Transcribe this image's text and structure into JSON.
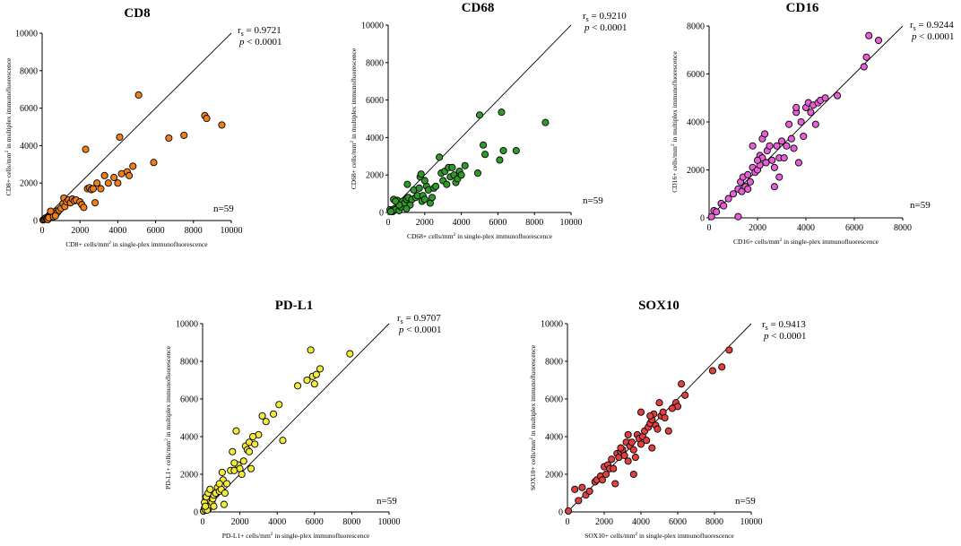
{
  "figure": {
    "n_label": "n=59"
  },
  "chart_data": [
    {
      "type": "scatter",
      "title": "CD8",
      "xlabel_pre": "CD8+ cells/mm",
      "xlabel_sup": "2",
      "xlabel_post": " in single-plex immunofluorescence",
      "ylabel_pre": "CD8+ cells/mm",
      "ylabel_sup": "2",
      "ylabel_post": " in multiplex immunofluorescence",
      "xlim": [
        0,
        10000
      ],
      "ylim": [
        0,
        10000
      ],
      "xticks": [
        0,
        2000,
        4000,
        6000,
        8000,
        10000
      ],
      "yticks": [
        0,
        2000,
        4000,
        6000,
        8000,
        10000
      ],
      "rs_label": "r",
      "rs_sub": "s",
      "rs_value": " = 0.9721",
      "p_label": "p",
      "p_value": " < 0.0001",
      "n": "n=59",
      "color": "#f07f1a",
      "identity_line": [
        [
          0,
          0
        ],
        [
          10000,
          10000
        ]
      ],
      "points": [
        [
          50,
          30
        ],
        [
          100,
          60
        ],
        [
          150,
          100
        ],
        [
          200,
          150
        ],
        [
          250,
          120
        ],
        [
          300,
          200
        ],
        [
          350,
          250
        ],
        [
          400,
          300
        ],
        [
          450,
          280
        ],
        [
          500,
          350
        ],
        [
          550,
          400
        ],
        [
          600,
          330
        ],
        [
          650,
          450
        ],
        [
          700,
          380
        ],
        [
          750,
          500
        ],
        [
          800,
          420
        ],
        [
          900,
          550
        ],
        [
          1000,
          650
        ],
        [
          1100,
          900
        ],
        [
          1150,
          1200
        ],
        [
          1200,
          750
        ],
        [
          1300,
          1000
        ],
        [
          1400,
          1100
        ],
        [
          1500,
          950
        ],
        [
          1600,
          1150
        ],
        [
          1700,
          1050
        ],
        [
          1800,
          1100
        ],
        [
          2000,
          1000
        ],
        [
          2100,
          850
        ],
        [
          2200,
          700
        ],
        [
          2300,
          3800
        ],
        [
          2400,
          1700
        ],
        [
          2500,
          1750
        ],
        [
          2600,
          1650
        ],
        [
          2700,
          1700
        ],
        [
          2800,
          950
        ],
        [
          2900,
          2000
        ],
        [
          3100,
          1700
        ],
        [
          3300,
          2400
        ],
        [
          3500,
          2000
        ],
        [
          3800,
          2300
        ],
        [
          4000,
          2000
        ],
        [
          4100,
          4450
        ],
        [
          4200,
          2500
        ],
        [
          4500,
          2600
        ],
        [
          4600,
          2400
        ],
        [
          4800,
          2900
        ],
        [
          5100,
          6700
        ],
        [
          5900,
          3100
        ],
        [
          6700,
          4400
        ],
        [
          7500,
          4550
        ],
        [
          8600,
          5600
        ],
        [
          8700,
          5450
        ],
        [
          9500,
          5100
        ],
        [
          300,
          50
        ],
        [
          350,
          150
        ],
        [
          450,
          500
        ],
        [
          600,
          200
        ],
        [
          700,
          250
        ]
      ]
    },
    {
      "type": "scatter",
      "title": "CD68",
      "xlabel_pre": "CD68+ cells/mm",
      "xlabel_sup": "2",
      "xlabel_post": " in single-plex immunofluorescence",
      "ylabel_pre": "CD68+ cells/mm",
      "ylabel_sup": "2",
      "ylabel_post": " in multiplex immunofluorescence",
      "xlim": [
        0,
        10000
      ],
      "ylim": [
        0,
        10000
      ],
      "xticks": [
        0,
        2000,
        4000,
        6000,
        8000,
        10000
      ],
      "yticks": [
        0,
        2000,
        4000,
        6000,
        8000,
        10000
      ],
      "rs_label": "r",
      "rs_sub": "s",
      "rs_value": " = 0.9210",
      "p_label": "p",
      "p_value": " < 0.0001",
      "n": "n=59",
      "color": "#2f9a27",
      "identity_line": [
        [
          0,
          0
        ],
        [
          10000,
          10000
        ]
      ],
      "points": [
        [
          100,
          150
        ],
        [
          200,
          100
        ],
        [
          250,
          50
        ],
        [
          300,
          700
        ],
        [
          350,
          200
        ],
        [
          400,
          150
        ],
        [
          500,
          650
        ],
        [
          600,
          100
        ],
        [
          700,
          300
        ],
        [
          800,
          600
        ],
        [
          900,
          500
        ],
        [
          1000,
          700
        ],
        [
          1050,
          1500
        ],
        [
          1100,
          800
        ],
        [
          1200,
          400
        ],
        [
          1300,
          700
        ],
        [
          1400,
          1200
        ],
        [
          1500,
          800
        ],
        [
          1600,
          900
        ],
        [
          1700,
          1300
        ],
        [
          1750,
          1900
        ],
        [
          1800,
          2050
        ],
        [
          1850,
          600
        ],
        [
          1900,
          900
        ],
        [
          2000,
          700
        ],
        [
          2100,
          1400
        ],
        [
          2200,
          1200
        ],
        [
          2300,
          500
        ],
        [
          2400,
          800
        ],
        [
          2500,
          1300
        ],
        [
          2600,
          1400
        ],
        [
          2800,
          2950
        ],
        [
          2900,
          2100
        ],
        [
          3000,
          1700
        ],
        [
          3100,
          2200
        ],
        [
          3200,
          1500
        ],
        [
          3300,
          2400
        ],
        [
          3400,
          1900
        ],
        [
          3500,
          2400
        ],
        [
          3600,
          2000
        ],
        [
          3700,
          1600
        ],
        [
          3800,
          1800
        ],
        [
          3900,
          2200
        ],
        [
          4000,
          2000
        ],
        [
          4200,
          2500
        ],
        [
          4900,
          2100
        ],
        [
          5000,
          5200
        ],
        [
          5200,
          3600
        ],
        [
          5300,
          3100
        ],
        [
          6100,
          2800
        ],
        [
          6200,
          5350
        ],
        [
          6300,
          3300
        ],
        [
          7000,
          3300
        ],
        [
          8600,
          4800
        ],
        [
          150,
          50
        ],
        [
          600,
          400
        ],
        [
          1000,
          200
        ],
        [
          2000,
          1700
        ],
        [
          400,
          600
        ]
      ]
    },
    {
      "type": "scatter",
      "title": "CD16",
      "xlabel_pre": "CD16+ cells/mm",
      "xlabel_sup": "2",
      "xlabel_post": " in single-plex immunofluorescence",
      "ylabel_pre": "CD16+ cells/mm",
      "ylabel_sup": "2",
      "ylabel_post": " in multiplex immunofluorescence",
      "xlim": [
        0,
        8000
      ],
      "ylim": [
        0,
        8000
      ],
      "xticks": [
        0,
        2000,
        4000,
        6000,
        8000
      ],
      "yticks": [
        0,
        2000,
        4000,
        6000,
        8000
      ],
      "rs_label": "r",
      "rs_sub": "s",
      "rs_value": " = 0.9244",
      "p_label": "p",
      "p_value": " < 0.0001",
      "n": "n=59",
      "color": "#e65fd6",
      "identity_line": [
        [
          0,
          0
        ],
        [
          8000,
          8000
        ]
      ],
      "points": [
        [
          100,
          50
        ],
        [
          200,
          300
        ],
        [
          300,
          250
        ],
        [
          500,
          600
        ],
        [
          600,
          500
        ],
        [
          800,
          800
        ],
        [
          1000,
          1000
        ],
        [
          1200,
          1200
        ],
        [
          1200,
          50
        ],
        [
          1300,
          1500
        ],
        [
          1350,
          1100
        ],
        [
          1400,
          1700
        ],
        [
          1500,
          1300
        ],
        [
          1600,
          1200
        ],
        [
          1600,
          1800
        ],
        [
          1700,
          1500
        ],
        [
          1800,
          2100
        ],
        [
          1800,
          3000
        ],
        [
          1900,
          1900
        ],
        [
          2000,
          2000
        ],
        [
          2100,
          2200
        ],
        [
          2100,
          2600
        ],
        [
          2200,
          2500
        ],
        [
          2200,
          3300
        ],
        [
          2300,
          3500
        ],
        [
          2350,
          2300
        ],
        [
          2400,
          2800
        ],
        [
          2500,
          3000
        ],
        [
          2600,
          2400
        ],
        [
          2700,
          2100
        ],
        [
          2700,
          1300
        ],
        [
          2800,
          3000
        ],
        [
          2900,
          2500
        ],
        [
          3000,
          3200
        ],
        [
          3100,
          2500
        ],
        [
          3200,
          3000
        ],
        [
          3300,
          3900
        ],
        [
          3400,
          3300
        ],
        [
          3500,
          2900
        ],
        [
          3600,
          4400
        ],
        [
          3600,
          4600
        ],
        [
          3700,
          2300
        ],
        [
          3800,
          4000
        ],
        [
          3900,
          3400
        ],
        [
          4000,
          4600
        ],
        [
          4100,
          4800
        ],
        [
          4200,
          4400
        ],
        [
          4300,
          4700
        ],
        [
          4400,
          3900
        ],
        [
          4500,
          4800
        ],
        [
          4600,
          4900
        ],
        [
          4800,
          5000
        ],
        [
          5300,
          5100
        ],
        [
          6400,
          6300
        ],
        [
          6500,
          6700
        ],
        [
          6600,
          7600
        ],
        [
          7000,
          7400
        ],
        [
          2000,
          2400
        ],
        [
          2900,
          1700
        ]
      ]
    },
    {
      "type": "scatter",
      "title": "PD-L1",
      "xlabel_pre": "PD-L1+ cells/mm",
      "xlabel_sup": "2",
      "xlabel_post": " in single-plex immunofluorescence",
      "ylabel_pre": "PD-L1+ cells/mm",
      "ylabel_sup": "2",
      "ylabel_post": " in multiplex immunofluorescence",
      "xlim": [
        0,
        10000
      ],
      "ylim": [
        0,
        10000
      ],
      "xticks": [
        0,
        2000,
        4000,
        6000,
        8000,
        10000
      ],
      "yticks": [
        0,
        2000,
        4000,
        6000,
        8000,
        10000
      ],
      "rs_label": "r",
      "rs_sub": "s",
      "rs_value": " = 0.9707",
      "p_label": "p",
      "p_value": " < 0.0001",
      "n": "n=59",
      "color": "#f4ea3c",
      "identity_line": [
        [
          0,
          0
        ],
        [
          10000,
          10000
        ]
      ],
      "points": [
        [
          50,
          50
        ],
        [
          100,
          200
        ],
        [
          150,
          100
        ],
        [
          200,
          300
        ],
        [
          250,
          400
        ],
        [
          300,
          150
        ],
        [
          350,
          600
        ],
        [
          400,
          300
        ],
        [
          450,
          800
        ],
        [
          500,
          500
        ],
        [
          550,
          700
        ],
        [
          600,
          900
        ],
        [
          700,
          1000
        ],
        [
          800,
          1300
        ],
        [
          900,
          1100
        ],
        [
          1000,
          1200
        ],
        [
          1050,
          2100
        ],
        [
          1100,
          1700
        ],
        [
          1150,
          400
        ],
        [
          1200,
          1000
        ],
        [
          1500,
          2200
        ],
        [
          1600,
          3200
        ],
        [
          1700,
          2200
        ],
        [
          1800,
          4300
        ],
        [
          1900,
          2500
        ],
        [
          2000,
          2300
        ],
        [
          2100,
          2000
        ],
        [
          2200,
          2700
        ],
        [
          2300,
          3500
        ],
        [
          2400,
          3300
        ],
        [
          2500,
          3700
        ],
        [
          2600,
          2300
        ],
        [
          2800,
          3600
        ],
        [
          3000,
          4100
        ],
        [
          3200,
          5100
        ],
        [
          3400,
          4800
        ],
        [
          3800,
          5200
        ],
        [
          4100,
          5700
        ],
        [
          4300,
          3800
        ],
        [
          5100,
          6700
        ],
        [
          5600,
          7000
        ],
        [
          5800,
          8600
        ],
        [
          5900,
          7200
        ],
        [
          6000,
          6800
        ],
        [
          6100,
          7300
        ],
        [
          6300,
          7600
        ],
        [
          7900,
          8400
        ],
        [
          100,
          500
        ],
        [
          200,
          800
        ],
        [
          300,
          1000
        ],
        [
          600,
          300
        ],
        [
          900,
          1500
        ],
        [
          400,
          1200
        ],
        [
          250,
          100
        ],
        [
          150,
          300
        ],
        [
          1300,
          1500
        ],
        [
          1700,
          2600
        ],
        [
          2500,
          3200
        ],
        [
          2700,
          4000
        ]
      ]
    },
    {
      "type": "scatter",
      "title": "SOX10",
      "xlabel_pre": "SOX10+ cells/mm",
      "xlabel_sup": "2",
      "xlabel_post": " in single-plex immunofluorescence",
      "ylabel_pre": "SOX10+ cells/mm",
      "ylabel_sup": "2",
      "ylabel_post": " in multiplex immunofluorescence",
      "xlim": [
        0,
        10000
      ],
      "ylim": [
        0,
        10000
      ],
      "xticks": [
        0,
        2000,
        4000,
        6000,
        8000,
        10000
      ],
      "yticks": [
        0,
        2000,
        4000,
        6000,
        8000,
        10000
      ],
      "rs_label": "r",
      "rs_sub": "s",
      "rs_value": " = 0.9413",
      "p_label": "p",
      "p_value": " < 0.0001",
      "n": "n=59",
      "color": "#e0403f",
      "identity_line": [
        [
          0,
          0
        ],
        [
          10000,
          10000
        ]
      ],
      "points": [
        [
          50,
          50
        ],
        [
          400,
          1200
        ],
        [
          600,
          600
        ],
        [
          800,
          1300
        ],
        [
          1000,
          900
        ],
        [
          1200,
          1100
        ],
        [
          1500,
          1600
        ],
        [
          1600,
          1700
        ],
        [
          1800,
          1900
        ],
        [
          1900,
          1700
        ],
        [
          2000,
          2400
        ],
        [
          2100,
          2000
        ],
        [
          2200,
          2500
        ],
        [
          2300,
          2300
        ],
        [
          2400,
          2800
        ],
        [
          2500,
          2300
        ],
        [
          2600,
          1500
        ],
        [
          2700,
          3100
        ],
        [
          2800,
          2900
        ],
        [
          2900,
          3200
        ],
        [
          3000,
          3300
        ],
        [
          3100,
          3000
        ],
        [
          3200,
          3700
        ],
        [
          3300,
          4100
        ],
        [
          3400,
          3500
        ],
        [
          3500,
          3700
        ],
        [
          3600,
          3300
        ],
        [
          3700,
          2900
        ],
        [
          3800,
          4100
        ],
        [
          3900,
          3900
        ],
        [
          4000,
          3600
        ],
        [
          4000,
          5300
        ],
        [
          4100,
          4000
        ],
        [
          4200,
          4300
        ],
        [
          4300,
          3800
        ],
        [
          4400,
          4500
        ],
        [
          4500,
          4700
        ],
        [
          4600,
          4900
        ],
        [
          4600,
          3400
        ],
        [
          4700,
          5200
        ],
        [
          4800,
          4600
        ],
        [
          5000,
          5800
        ],
        [
          5100,
          5100
        ],
        [
          5200,
          5300
        ],
        [
          5300,
          5000
        ],
        [
          5500,
          4300
        ],
        [
          5900,
          5800
        ],
        [
          6000,
          5600
        ],
        [
          6200,
          6800
        ],
        [
          6400,
          6200
        ],
        [
          7900,
          7500
        ],
        [
          8400,
          7700
        ],
        [
          8800,
          8600
        ],
        [
          3600,
          2000
        ],
        [
          3300,
          2700
        ],
        [
          2900,
          3400
        ],
        [
          4900,
          4400
        ],
        [
          5700,
          5500
        ],
        [
          4500,
          5100
        ]
      ]
    }
  ]
}
